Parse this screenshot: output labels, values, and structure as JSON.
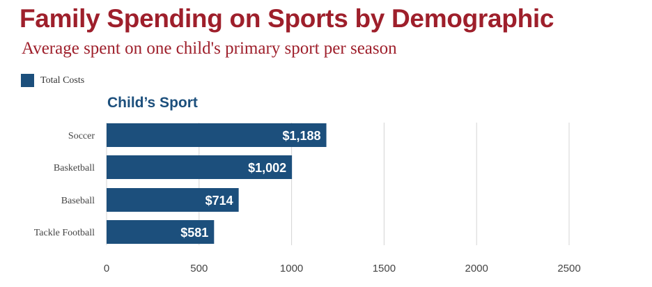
{
  "title": "Family Spending on Sports by Demographic",
  "subtitle": "Average spent on one child's primary sport per season",
  "legend": {
    "label": "Total Costs",
    "color": "#1c4f7c"
  },
  "section_title": "Child’s Sport",
  "colors": {
    "bar": "#1c4f7c",
    "title": "#9e1f2b",
    "grid": "#d4d4d4"
  },
  "chart_data": {
    "type": "bar",
    "orientation": "horizontal",
    "categories": [
      "Soccer",
      "Basketball",
      "Baseball",
      "Tackle Football"
    ],
    "series": [
      {
        "name": "Total Costs",
        "values": [
          1188,
          1002,
          714,
          581
        ],
        "value_labels": [
          "$1,188",
          "$1,002",
          "$714",
          "$581"
        ]
      }
    ],
    "xlim": [
      0,
      2500
    ],
    "x_ticks": [
      0,
      500,
      1000,
      1500,
      2000,
      2500
    ],
    "grid": true,
    "legend_position": "top-left"
  }
}
